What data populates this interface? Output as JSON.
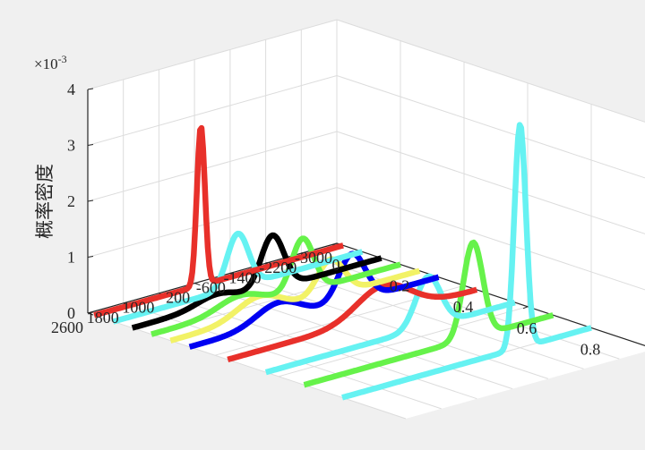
{
  "chart_data": {
    "type": "line",
    "view": "3d-waterfall",
    "zlabel": "概率密度",
    "z_exponent_label": "×10",
    "z_exponent_power": "-3",
    "z_ticks": [
      "0",
      "1",
      "2",
      "3",
      "4"
    ],
    "x_ticks": [
      "0",
      "0.2",
      "0.4",
      "0.6",
      "0.8"
    ],
    "y_ticks": [
      "2600",
      "1800",
      "1000",
      "200",
      "-600",
      "-1400",
      "-2200",
      "-3000"
    ],
    "zlim": [
      0,
      4
    ],
    "grid": true,
    "series": [
      {
        "color": "#e8302a",
        "x": 0.02,
        "peaks": [
          {
            "y": 200,
            "sigma": 90,
            "amp": 2.85
          }
        ]
      },
      {
        "color": "#66f2f2",
        "x": 0.08,
        "peaks": [
          {
            "y": -200,
            "sigma": 240,
            "amp": 0.95
          }
        ]
      },
      {
        "color": "#000000",
        "x": 0.14,
        "peaks": [
          {
            "y": -550,
            "sigma": 260,
            "amp": 0.95
          },
          {
            "y": 700,
            "sigma": 450,
            "amp": 0.18
          }
        ]
      },
      {
        "color": "#66f24a",
        "x": 0.2,
        "peaks": [
          {
            "y": -800,
            "sigma": 250,
            "amp": 0.95
          },
          {
            "y": 600,
            "sigma": 500,
            "amp": 0.25
          }
        ]
      },
      {
        "color": "#f2f266",
        "x": 0.26,
        "peaks": [
          {
            "y": -1000,
            "sigma": 300,
            "amp": 0.65
          },
          {
            "y": 600,
            "sigma": 500,
            "amp": 0.35
          }
        ]
      },
      {
        "color": "#0000f2",
        "x": 0.32,
        "peaks": [
          {
            "y": -1050,
            "sigma": 300,
            "amp": 0.85
          },
          {
            "y": 600,
            "sigma": 500,
            "amp": 0.35
          }
        ]
      },
      {
        "color": "#e8302a",
        "x": 0.44,
        "peaks": [
          {
            "y": -900,
            "sigma": 600,
            "amp": 0.55
          }
        ]
      },
      {
        "color": "#66f2f2",
        "x": 0.56,
        "peaks": [
          {
            "y": -1050,
            "sigma": 280,
            "amp": 0.9
          }
        ]
      },
      {
        "color": "#66f24a",
        "x": 0.68,
        "peaks": [
          {
            "y": -1200,
            "sigma": 220,
            "amp": 1.7
          }
        ]
      },
      {
        "color": "#66f2f2",
        "x": 0.8,
        "peaks": [
          {
            "y": -1400,
            "sigma": 130,
            "amp": 4.0
          }
        ]
      }
    ]
  }
}
